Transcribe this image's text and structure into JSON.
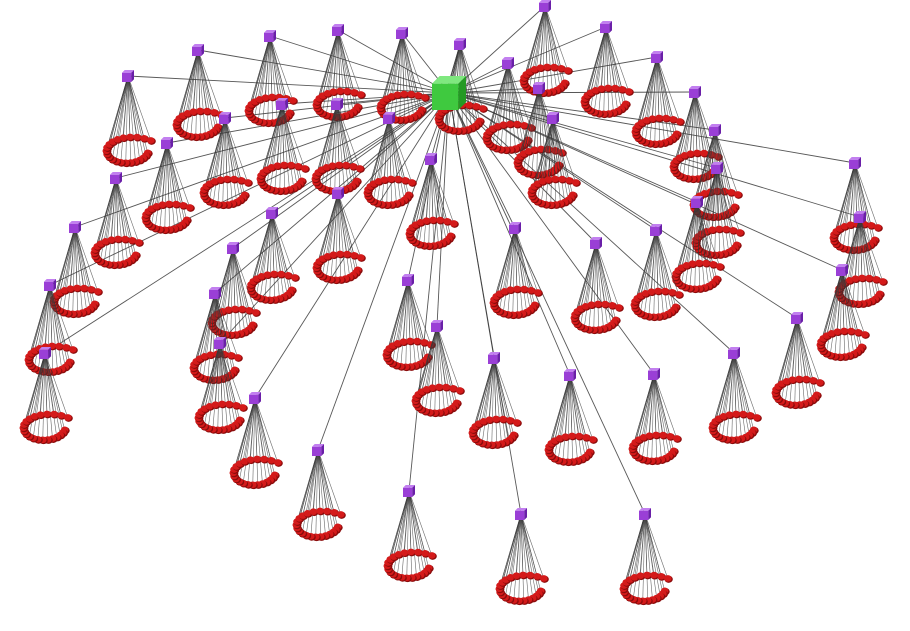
{
  "diagram": {
    "kind": "3d-hierarchical-network",
    "root": {
      "shape": "cube",
      "color": "#3fc93f",
      "shade": "#249a24",
      "top": "#7fe87f"
    },
    "hubs": {
      "shape": "cube",
      "color": "#9a3fd6",
      "shade": "#6a1fa8",
      "top": "#c27ff0",
      "count": 48
    },
    "leaves": {
      "shape": "ball",
      "color": "#d41a1a",
      "shade": "#8a0b0b",
      "per_hub": 22
    },
    "edge_color": "#3a3a3a",
    "background": "#ffffff"
  }
}
